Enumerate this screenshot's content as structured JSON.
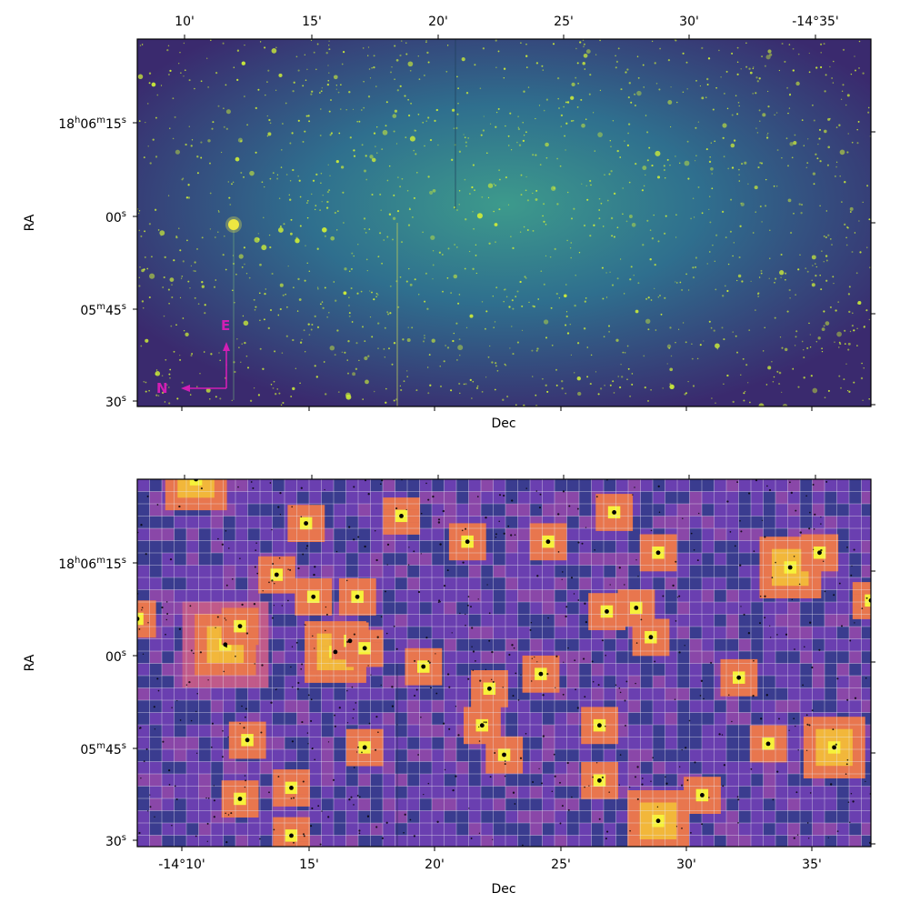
{
  "chart_data": [
    {
      "type": "image",
      "panel": "top",
      "colormap": "viridis",
      "xlabel": "Dec",
      "ylabel": "RA",
      "x_tick_labels": [
        "10'",
        "15'",
        "20'",
        "25'",
        "30'",
        "-14°35'"
      ],
      "y_ticks": [
        {
          "pre": "18",
          "sup1": "h",
          "mid": "06",
          "sup2": "m",
          "post": "15",
          "sup3": "s"
        },
        {
          "pre": "00",
          "sup1": "s"
        },
        {
          "pre": "05",
          "sup1": "m",
          "mid": "45",
          "sup2": "s"
        },
        {
          "pre": "30",
          "sup1": "s"
        }
      ],
      "compass": {
        "north_label": "N",
        "east_label": "E",
        "color": "#d21eb4"
      },
      "background_colors": [
        "#3b2f6e",
        "#2f6b8e",
        "#3d8f8c"
      ],
      "star_color": "#c8e83a"
    },
    {
      "type": "heatmap",
      "panel": "bottom",
      "colormap": "plasma",
      "xlabel": "Dec",
      "ylabel": "RA",
      "x_tick_labels": [
        "-14°10'",
        "15'",
        "20'",
        "25'",
        "30'",
        "35'"
      ],
      "y_ticks": [
        {
          "pre": "18",
          "sup1": "h",
          "mid": "06",
          "sup2": "m",
          "post": "15",
          "sup3": "s"
        },
        {
          "pre": "00",
          "sup1": "s"
        },
        {
          "pre": "05",
          "sup1": "m",
          "mid": "45",
          "sup2": "s"
        },
        {
          "pre": "30",
          "sup1": "s"
        }
      ],
      "grid": true,
      "grid_color": "#e8e8f0",
      "background_colors": [
        "#3a3c8f",
        "#6a3fb0",
        "#8a47a8"
      ],
      "hot_colors": [
        "#c05a8a",
        "#e8764e",
        "#f2b73a",
        "#f7f23a"
      ]
    }
  ]
}
